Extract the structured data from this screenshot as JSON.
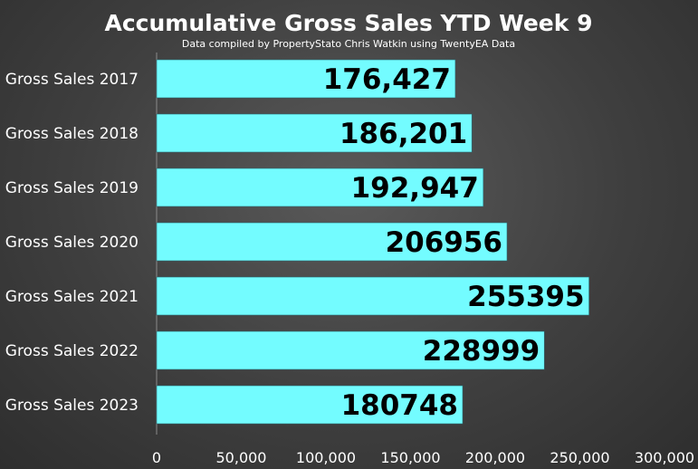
{
  "chart_data": {
    "type": "bar",
    "orientation": "horizontal",
    "title": "Accumulative Gross Sales YTD Week 9",
    "subtitle": "Data compiled by PropertyStato Chris Watkin using TwentyEA Data",
    "categories": [
      "Gross Sales 2017",
      "Gross Sales 2018",
      "Gross Sales 2019",
      "Gross Sales 2020",
      "Gross Sales 2021",
      "Gross Sales 2022",
      "Gross Sales 2023"
    ],
    "values": [
      176427,
      186201,
      192947,
      206956,
      255395,
      228999,
      180748
    ],
    "data_labels": [
      "176,427",
      "186,201",
      "192,947",
      "206956",
      "255395",
      "228999",
      "180748"
    ],
    "xlim": [
      0,
      300000
    ],
    "x_ticks": [
      0,
      50000,
      100000,
      150000,
      200000,
      250000,
      300000
    ],
    "x_tick_labels": [
      "0",
      "50,000",
      "100,000",
      "150,000",
      "200,000",
      "250,000",
      "300,000"
    ],
    "bar_color": "#73fcff",
    "background_color": "#454545",
    "grid": false,
    "legend": "none"
  }
}
